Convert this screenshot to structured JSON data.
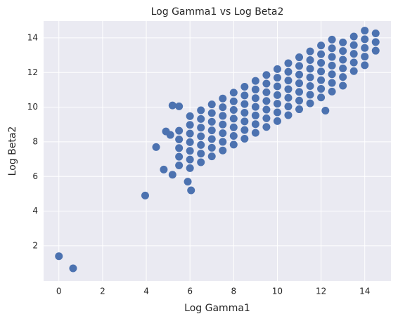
{
  "chart_data": {
    "type": "scatter",
    "title": "Log Gamma1 vs Log Beta2",
    "x_label": "Log Gamma1",
    "y_label": "Log Beta2",
    "color": "#4c72b0",
    "grid": true,
    "xlim": [
      -0.7,
      15.2
    ],
    "ylim": [
      -0.03,
      14.97
    ],
    "xticks": [
      0,
      2,
      4,
      6,
      8,
      10,
      12,
      14
    ],
    "yticks": [
      2,
      4,
      6,
      8,
      10,
      12,
      14
    ],
    "x": [
      0,
      0.65,
      3.95,
      4.45,
      4.8,
      5.2,
      5.2,
      5.9,
      6.05,
      4.9,
      5.1,
      12.2,
      5.5,
      5.5,
      5.5,
      5.5,
      5.5,
      5.5,
      6,
      6,
      6,
      6,
      6,
      6,
      6,
      6.5,
      6.5,
      6.5,
      6.5,
      6.5,
      6.5,
      6.5,
      7,
      7,
      7,
      7,
      7,
      7,
      7,
      7.5,
      7.5,
      7.5,
      7.5,
      7.5,
      7.5,
      7.5,
      8,
      8,
      8,
      8,
      8,
      8,
      8,
      8.5,
      8.5,
      8.5,
      8.5,
      8.5,
      8.5,
      8.5,
      9,
      9,
      9,
      9,
      9,
      9,
      9,
      9.5,
      9.5,
      9.5,
      9.5,
      9.5,
      9.5,
      9.5,
      10,
      10,
      10,
      10,
      10,
      10,
      10,
      10.5,
      10.5,
      10.5,
      10.5,
      10.5,
      10.5,
      10.5,
      11,
      11,
      11,
      11,
      11,
      11,
      11,
      11.5,
      11.5,
      11.5,
      11.5,
      11.5,
      11.5,
      11.5,
      12,
      12,
      12,
      12,
      12,
      12,
      12,
      12.5,
      12.5,
      12.5,
      12.5,
      12.5,
      12.5,
      12.5,
      13,
      13,
      13,
      13,
      13,
      13,
      13.5,
      13.5,
      13.5,
      13.5,
      13.5,
      14,
      14,
      14,
      14,
      14,
      14.5,
      14.5,
      14.5
    ],
    "values": [
      1.4,
      0.7,
      4.9,
      7.7,
      6.4,
      6.1,
      10.1,
      5.7,
      5.2,
      8.6,
      8.4,
      9.8,
      10.05,
      6.64,
      7.14,
      7.64,
      8.14,
      8.64,
      6.48,
      6.98,
      7.48,
      7.98,
      8.48,
      8.98,
      9.48,
      6.82,
      7.32,
      7.82,
      8.32,
      8.82,
      9.32,
      9.82,
      7.16,
      7.66,
      8.16,
      8.66,
      9.16,
      9.66,
      10.16,
      7.5,
      8,
      8.5,
      9,
      9.5,
      10,
      10.5,
      7.84,
      8.34,
      8.84,
      9.34,
      9.84,
      10.34,
      10.84,
      8.18,
      8.68,
      9.18,
      9.68,
      10.18,
      10.68,
      11.18,
      8.52,
      9.02,
      9.52,
      10.02,
      10.52,
      11.02,
      11.52,
      8.86,
      9.36,
      9.86,
      10.36,
      10.86,
      11.36,
      11.86,
      9.2,
      9.7,
      10.2,
      10.7,
      11.2,
      11.7,
      12.2,
      9.54,
      10.04,
      10.54,
      11.04,
      11.54,
      12.04,
      12.54,
      9.88,
      10.38,
      10.88,
      11.38,
      11.88,
      12.38,
      12.88,
      10.22,
      10.72,
      11.22,
      11.72,
      12.22,
      12.72,
      13.22,
      10.56,
      11.06,
      11.56,
      12.06,
      12.56,
      13.06,
      13.56,
      10.9,
      11.4,
      11.9,
      12.4,
      12.9,
      13.4,
      13.9,
      11.24,
      11.74,
      12.24,
      12.74,
      13.24,
      13.74,
      12.08,
      12.58,
      13.08,
      13.58,
      14.08,
      12.42,
      12.92,
      13.42,
      13.92,
      14.42,
      13.26,
      13.76,
      14.26
    ]
  }
}
